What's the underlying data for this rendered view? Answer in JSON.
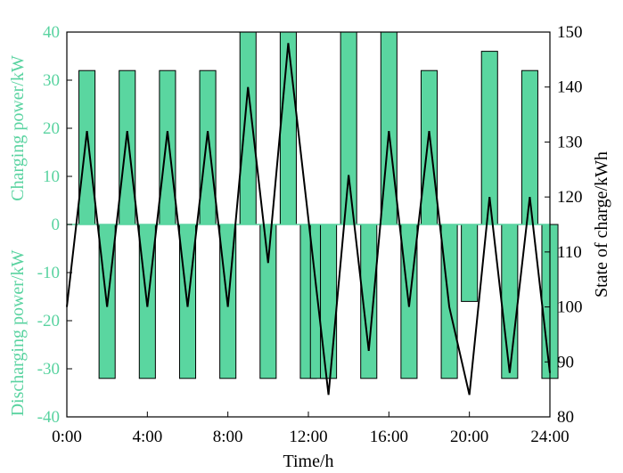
{
  "chart_data": {
    "type": "bar",
    "colors": {
      "bar_fill": "#5ad6a0",
      "bar_stroke": "#000000",
      "left_axis": "#59d3a0",
      "soc_line": "#000000",
      "axis": "#000000"
    },
    "xlabel": "Time/h",
    "ylabel_left_top": "Charging power/kW",
    "ylabel_left_bottom": "Discharging power/kW",
    "ylabel_right": "State of charge/kWh",
    "xlim": [
      0,
      24
    ],
    "ylim_left": [
      -40,
      40
    ],
    "ylim_right": [
      80,
      150
    ],
    "x_ticks": [
      "0:00",
      "4:00",
      "8:00",
      "12:00",
      "16:00",
      "20:00",
      "24:00"
    ],
    "x_tick_values": [
      0,
      4,
      8,
      12,
      16,
      20,
      24
    ],
    "y_left_ticks": [
      40,
      30,
      20,
      10,
      0,
      -10,
      -20,
      -30,
      -40
    ],
    "y_right_ticks": [
      150,
      140,
      130,
      120,
      110,
      100,
      90,
      80
    ],
    "power_series": {
      "name": "Charging/Discharging power",
      "hours": [
        1,
        2,
        3,
        4,
        5,
        6,
        7,
        8,
        9,
        10,
        11,
        12,
        12.5,
        13,
        14,
        15,
        16,
        17,
        18,
        19,
        20,
        21,
        22,
        23,
        24
      ],
      "values": [
        32,
        -32,
        32,
        -32,
        32,
        -32,
        32,
        -32,
        40,
        -32,
        40,
        -32,
        -32,
        -32,
        40,
        -32,
        40,
        -32,
        32,
        -32,
        -16,
        36,
        -32,
        32,
        -32
      ]
    },
    "soc_series": {
      "name": "State of charge",
      "x": [
        0,
        1,
        2,
        3,
        4,
        5,
        6,
        7,
        8,
        9,
        10,
        11,
        13,
        14,
        15,
        16,
        17,
        18,
        19,
        20,
        21,
        22,
        23,
        24
      ],
      "y": [
        100,
        132,
        100,
        132,
        100,
        132,
        100,
        132,
        100,
        140,
        108,
        148,
        84,
        124,
        92,
        132,
        100,
        132,
        100,
        84,
        120,
        88,
        120,
        88
      ]
    }
  }
}
